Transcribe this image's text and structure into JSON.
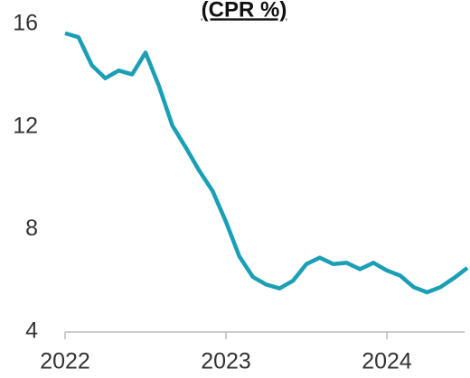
{
  "chart_data": {
    "type": "line",
    "title": "(CPR %)",
    "x": [
      2022,
      2022.083,
      2022.167,
      2022.25,
      2022.333,
      2022.417,
      2022.5,
      2022.583,
      2022.667,
      2022.75,
      2022.833,
      2022.917,
      2023,
      2023.083,
      2023.167,
      2023.25,
      2023.333,
      2023.417,
      2023.5,
      2023.583,
      2023.667,
      2023.75,
      2023.833,
      2023.917,
      2024,
      2024.083,
      2024.167,
      2024.25,
      2024.333,
      2024.417,
      2024.5
    ],
    "series": [
      {
        "name": "CPR",
        "color": "#1a9fb5",
        "values": [
          15.65,
          15.5,
          14.4,
          13.9,
          14.2,
          14.05,
          14.9,
          13.6,
          12.05,
          11.2,
          10.3,
          9.5,
          8.3,
          6.95,
          6.15,
          5.85,
          5.7,
          6.0,
          6.65,
          6.9,
          6.65,
          6.7,
          6.45,
          6.7,
          6.4,
          6.2,
          5.75,
          5.55,
          5.75,
          6.1,
          6.5
        ]
      }
    ],
    "xlim": [
      2022,
      2024.5
    ],
    "xticks": [
      2022,
      2023,
      2024
    ],
    "ylim": [
      4,
      16
    ],
    "yticks": [
      4,
      8,
      12,
      16
    ]
  }
}
